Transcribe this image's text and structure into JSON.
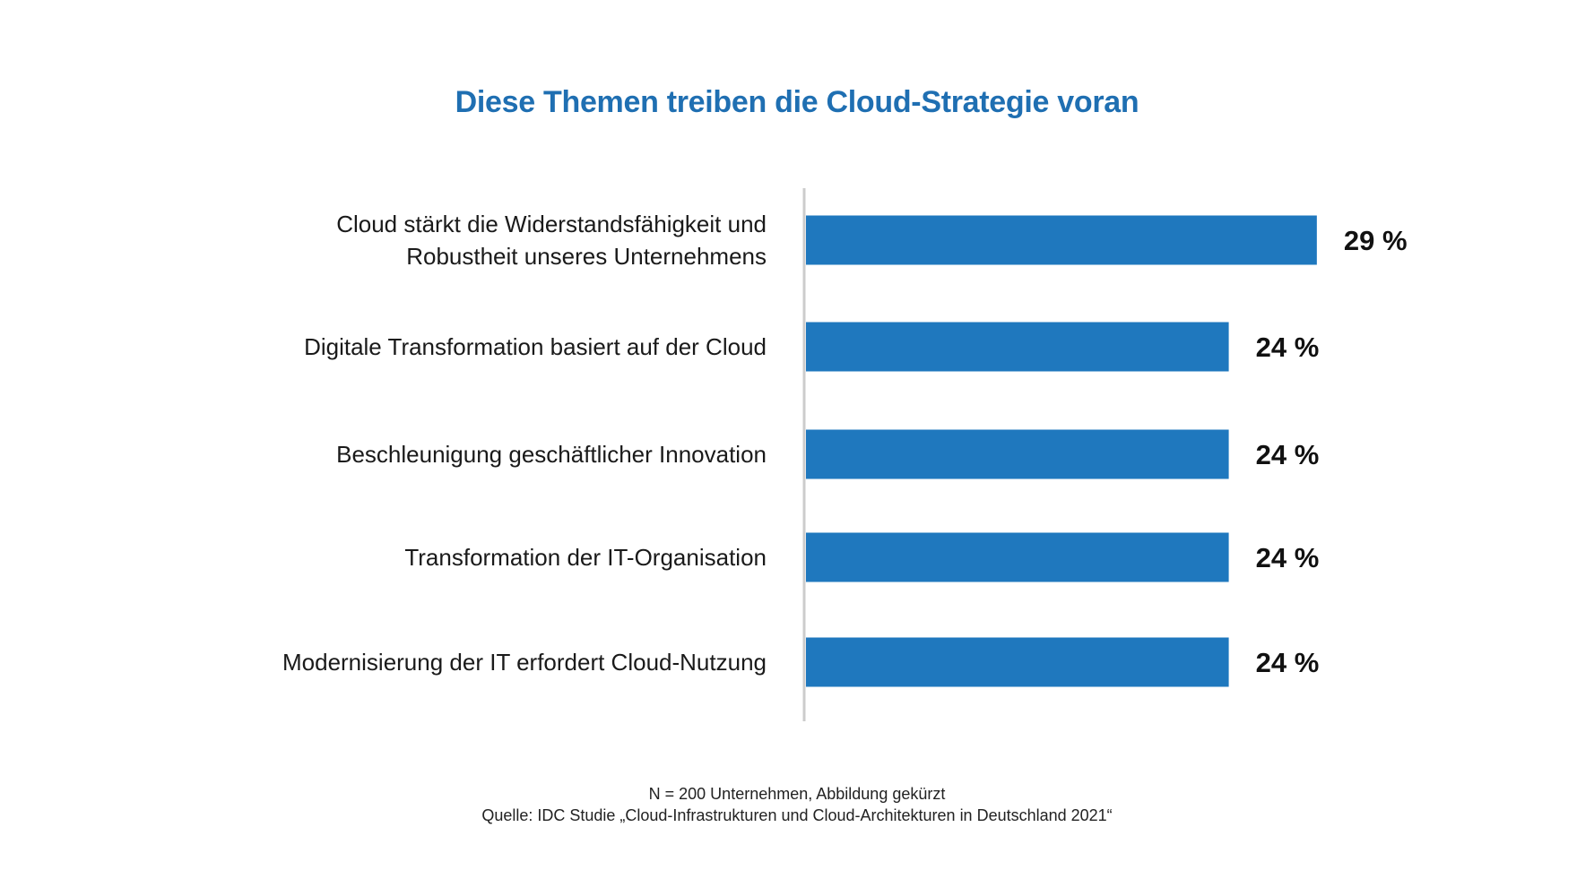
{
  "chart_data": {
    "type": "bar",
    "orientation": "horizontal",
    "title": "Diese Themen treiben die Cloud-Strategie voran",
    "categories": [
      [
        "Cloud stärkt die Widerstandsfähigkeit und",
        "Robustheit unseres Unternehmens"
      ],
      [
        "Digitale Transformation basiert auf der Cloud"
      ],
      [
        "Beschleunigung geschäftlicher Innovation"
      ],
      [
        "Transformation der IT-Organisation"
      ],
      [
        "Modernisierung der IT erfordert Cloud-Nutzung"
      ]
    ],
    "values": [
      29,
      24,
      24,
      24,
      24
    ],
    "data_labels": [
      "29 %",
      "24 %",
      "24 %",
      "24 %",
      "24 %"
    ],
    "unit": "%",
    "bar_color": "#1f78be",
    "axis_color": "#cccccc",
    "grid": false,
    "legend": "none"
  },
  "footnote": {
    "sample": "N = 200 Unternehmen, Abbildung gekürzt",
    "source": "Quelle: IDC Studie „Cloud-Infrastrukturen und Cloud-Architekturen in Deutschland 2021“"
  }
}
